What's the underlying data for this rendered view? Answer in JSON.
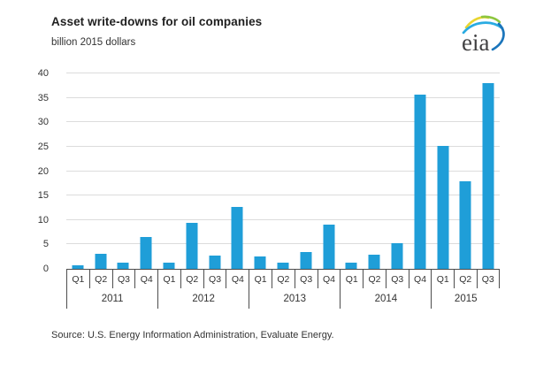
{
  "header": {
    "title": "Asset write-downs for oil companies",
    "subtitle": "billion 2015 dollars"
  },
  "logo": {
    "text": "eia"
  },
  "chart_data": {
    "type": "bar",
    "title": "Asset write-downs for oil companies",
    "ylabel": "billion 2015 dollars",
    "ylim": [
      0,
      40
    ],
    "ytick_step": 5,
    "grid": true,
    "legend": "none",
    "groups": [
      {
        "year": "2011",
        "quarters": [
          "Q1",
          "Q2",
          "Q3",
          "Q4"
        ],
        "values": [
          0.8,
          3.0,
          1.2,
          6.6
        ]
      },
      {
        "year": "2012",
        "quarters": [
          "Q1",
          "Q2",
          "Q3",
          "Q4"
        ],
        "values": [
          1.3,
          9.4,
          2.8,
          12.6
        ]
      },
      {
        "year": "2013",
        "quarters": [
          "Q1",
          "Q2",
          "Q3",
          "Q4"
        ],
        "values": [
          2.5,
          1.3,
          3.4,
          9.1
        ]
      },
      {
        "year": "2014",
        "quarters": [
          "Q1",
          "Q2",
          "Q3",
          "Q4"
        ],
        "values": [
          1.2,
          2.9,
          5.3,
          35.6
        ]
      },
      {
        "year": "2015",
        "quarters": [
          "Q1",
          "Q2",
          "Q3"
        ],
        "values": [
          25.1,
          17.9,
          38.0
        ]
      }
    ],
    "colors": {
      "bar": "#1f9ed8",
      "grid": "#dcdcdc",
      "axis": "#4d4d4d",
      "logo_green": "#8dc63f",
      "logo_light_blue": "#29abe2",
      "logo_dark_blue": "#1b75bb",
      "logo_yellow": "#e8d530"
    }
  },
  "source": "Source:  U.S. Energy Information Administration, Evaluate Energy."
}
